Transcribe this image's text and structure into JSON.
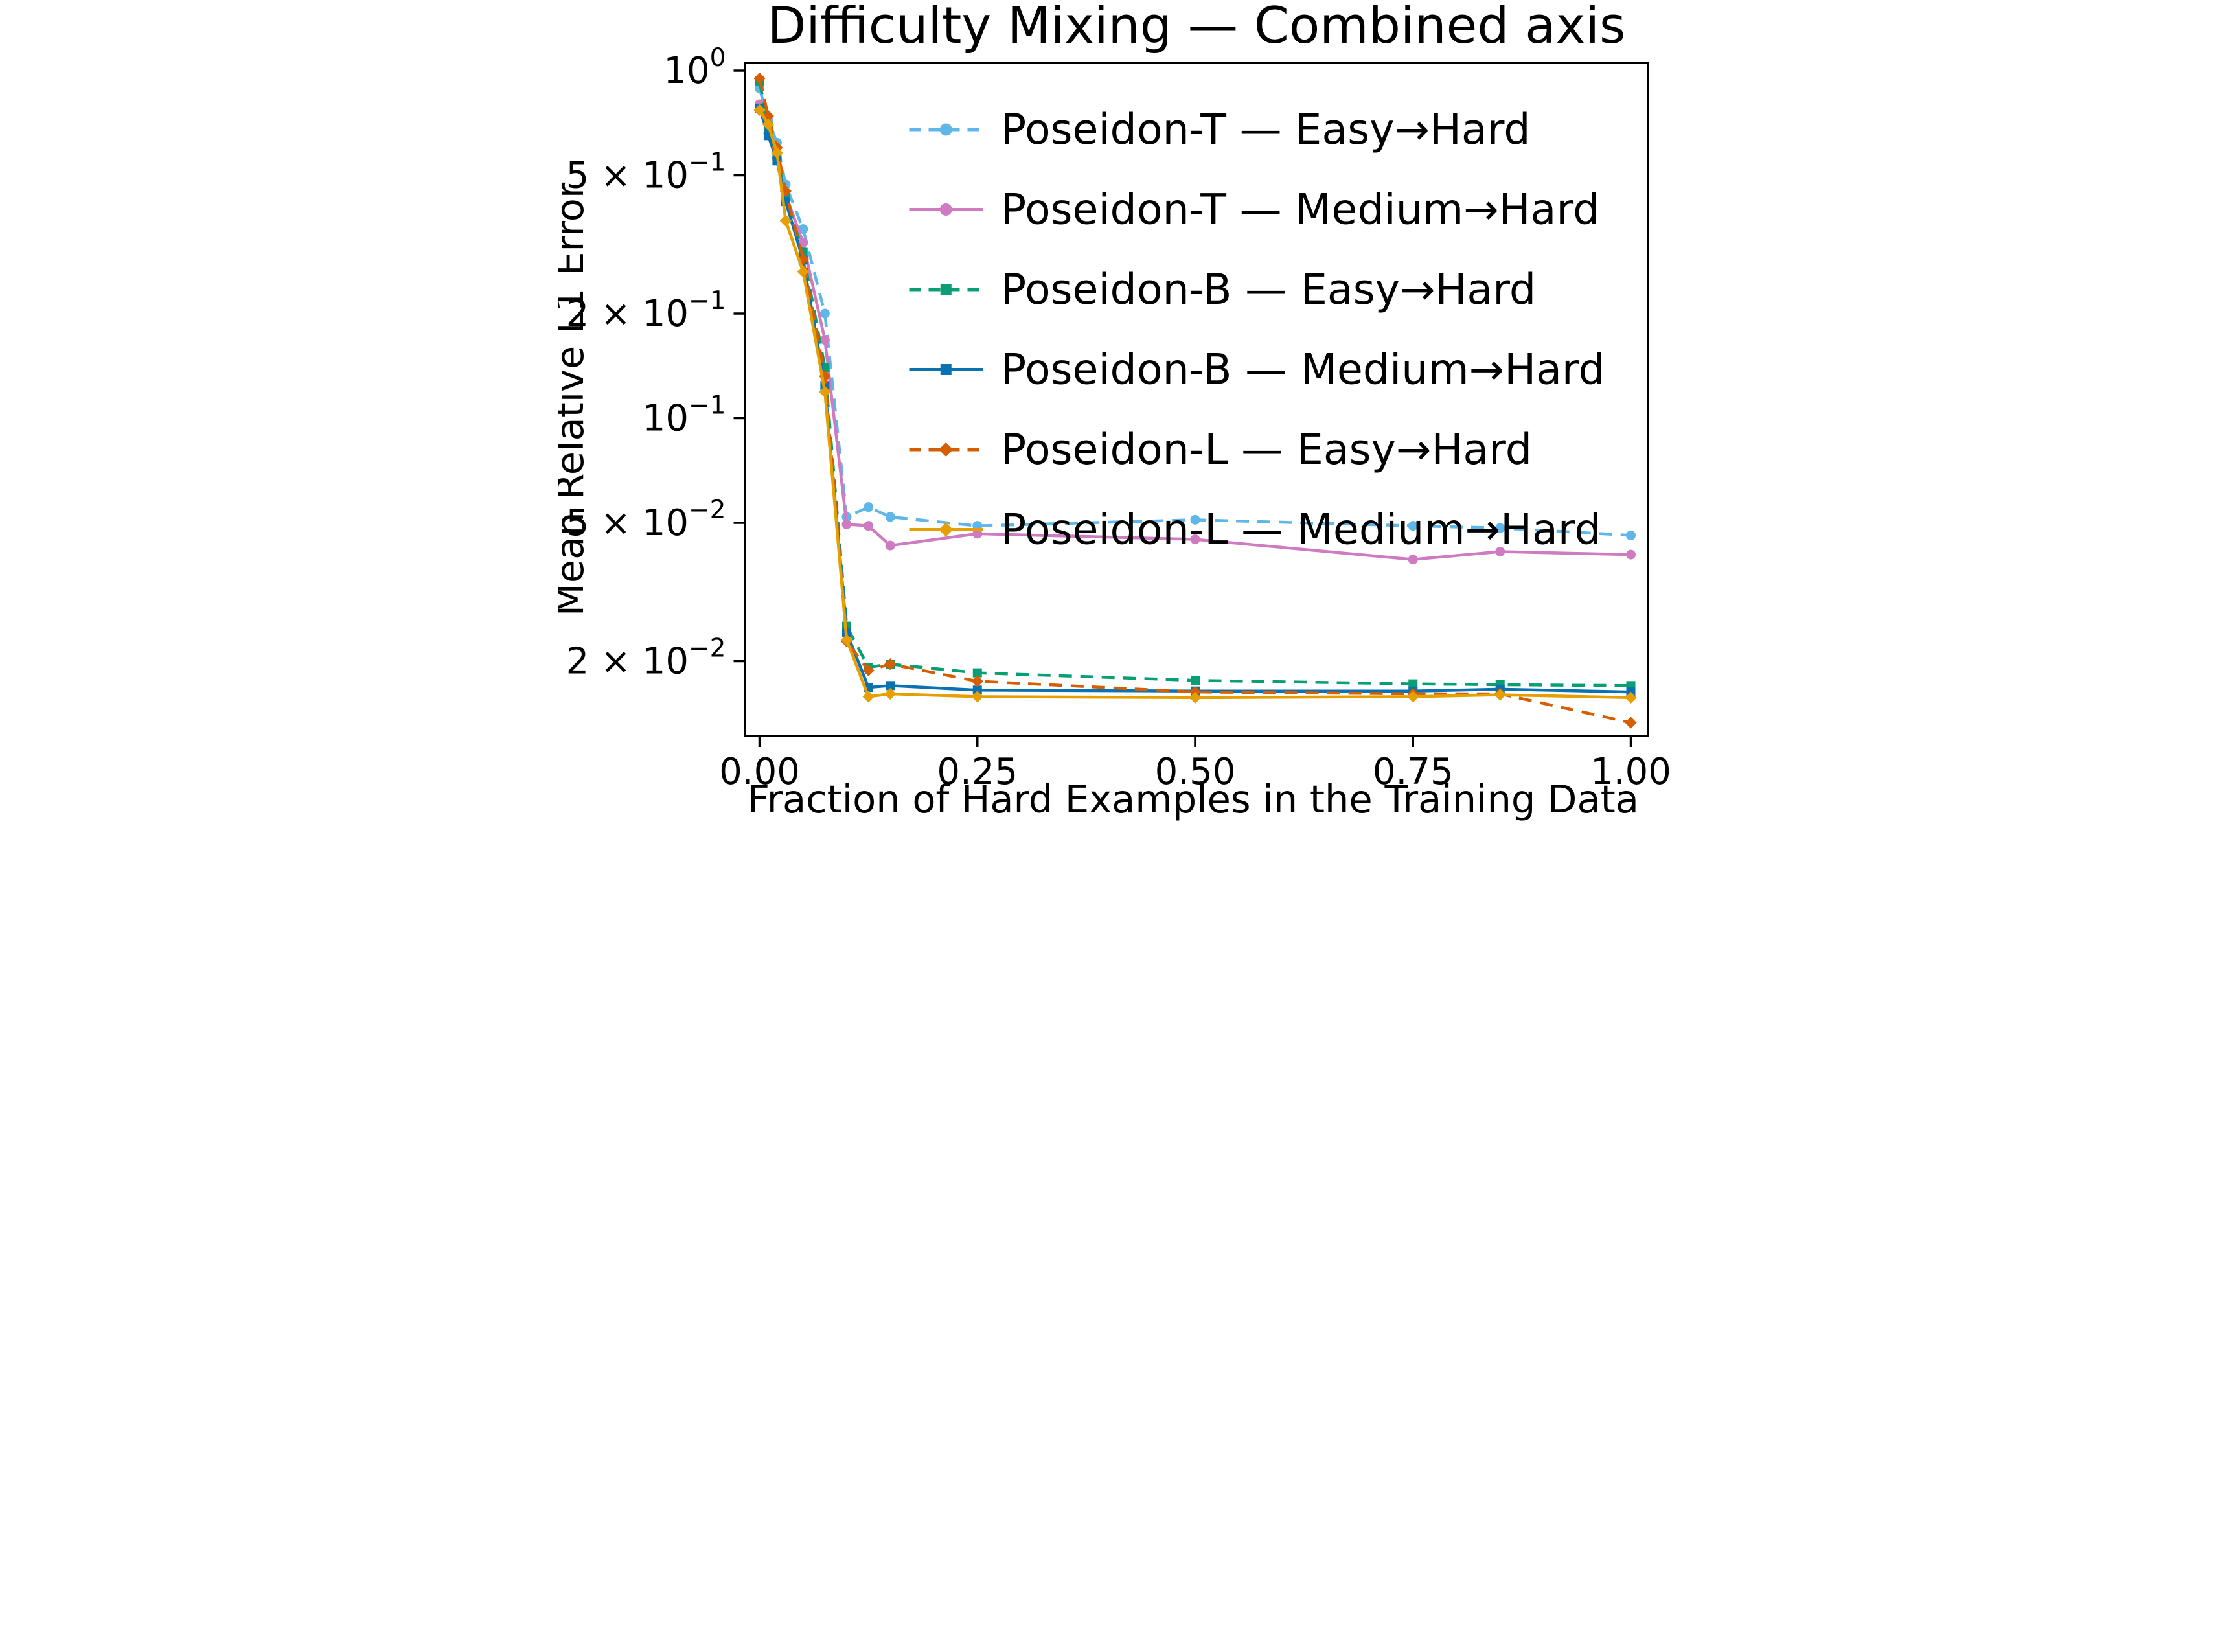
{
  "chart_data": {
    "type": "line",
    "title": "Difficulty Mixing — Combined axis",
    "xlabel": "Fraction of Hard Examples in the Training Data",
    "ylabel": "Mean Relative L1 Error",
    "yscale": "log",
    "grid": false,
    "legend_position": "upper-right-inside",
    "xlim": [
      -0.0171,
      1.0197
    ],
    "ylim": [
      0.01218,
      1.0506
    ],
    "x": [
      0,
      0.01,
      0.02,
      0.03,
      0.05,
      0.075,
      0.1,
      0.125,
      0.15,
      0.25,
      0.5,
      0.75,
      0.85,
      1.0
    ],
    "xticks": [
      {
        "value": 0.0,
        "label": "0.00"
      },
      {
        "value": 0.25,
        "label": "0.25"
      },
      {
        "value": 0.5,
        "label": "0.50"
      },
      {
        "value": 0.75,
        "label": "0.75"
      },
      {
        "value": 1.0,
        "label": "1.00"
      }
    ],
    "yticks": [
      {
        "value": 1.0,
        "base": "10",
        "exp": "0",
        "label": "10⁰"
      },
      {
        "value": 0.5,
        "base": "5 × 10",
        "exp": "−1",
        "label": "5 × 10⁻¹"
      },
      {
        "value": 0.2,
        "base": "2 × 10",
        "exp": "−1",
        "label": "2 × 10⁻¹"
      },
      {
        "value": 0.1,
        "base": "10",
        "exp": "−1",
        "label": "10⁻¹"
      },
      {
        "value": 0.05,
        "base": "5 × 10",
        "exp": "−2",
        "label": "5 × 10⁻²"
      },
      {
        "value": 0.02,
        "base": "2 × 10",
        "exp": "−2",
        "label": "2 × 10⁻²"
      }
    ],
    "series": [
      {
        "id": "poseidon-t-easy-hard",
        "name": "Poseidon-T — Easy→Hard",
        "color": "#5FB6E8",
        "linestyle": "dashed",
        "marker": "circle",
        "values": [
          0.89,
          0.72,
          0.62,
          0.47,
          0.35,
          0.2,
          0.052,
          0.0555,
          0.052,
          0.049,
          0.051,
          0.049,
          0.0483,
          0.046
        ]
      },
      {
        "id": "poseidon-t-medium-hard",
        "name": "Poseidon-T — Medium→Hard",
        "color": "#CE7BC1",
        "linestyle": "solid",
        "marker": "circle",
        "values": [
          0.8,
          0.66,
          0.56,
          0.44,
          0.32,
          0.168,
          0.0495,
          0.049,
          0.043,
          0.0465,
          0.0448,
          0.0392,
          0.0413,
          0.0405
        ]
      },
      {
        "id": "poseidon-b-easy-hard",
        "name": "Poseidon-B — Easy→Hard",
        "color": "#0A9E74",
        "linestyle": "dashed",
        "marker": "square",
        "values": [
          0.93,
          0.69,
          0.57,
          0.43,
          0.3,
          0.14,
          0.0252,
          0.0192,
          0.0196,
          0.0185,
          0.0176,
          0.0172,
          0.0171,
          0.017
        ]
      },
      {
        "id": "poseidon-b-medium-hard",
        "name": "Poseidon-B — Medium→Hard",
        "color": "#0B72B2",
        "linestyle": "solid",
        "marker": "square",
        "values": [
          0.78,
          0.65,
          0.55,
          0.42,
          0.285,
          0.124,
          0.0242,
          0.0168,
          0.017,
          0.0165,
          0.0164,
          0.0164,
          0.0166,
          0.0163
        ]
      },
      {
        "id": "poseidon-l-easy-hard",
        "name": "Poseidon-L — Easy→Hard",
        "color": "#D55E00",
        "linestyle": "dashed",
        "marker": "diamond",
        "values": [
          0.95,
          0.74,
          0.6,
          0.45,
          0.287,
          0.132,
          0.0228,
          0.0188,
          0.0196,
          0.0175,
          0.0163,
          0.0161,
          0.0161,
          0.0133
        ]
      },
      {
        "id": "poseidon-l-medium-hard",
        "name": "Poseidon-L — Medium→Hard",
        "color": "#E69F00",
        "linestyle": "solid",
        "marker": "diamond",
        "values": [
          0.77,
          0.7,
          0.58,
          0.37,
          0.264,
          0.119,
          0.023,
          0.0158,
          0.0161,
          0.0158,
          0.0157,
          0.0158,
          0.016,
          0.0157
        ]
      }
    ]
  }
}
